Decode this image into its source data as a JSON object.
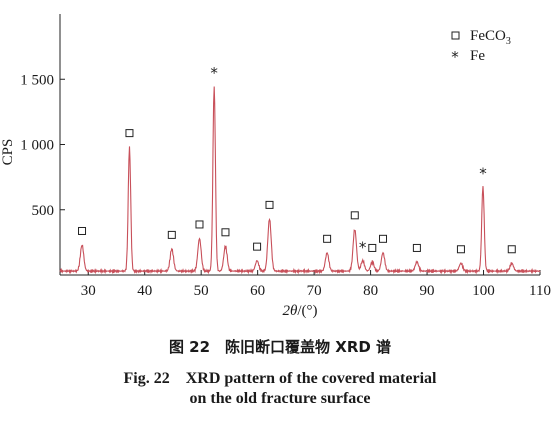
{
  "chart_data": {
    "type": "line",
    "ylabel": "CPS",
    "xlabel": "2θ/(°)",
    "xlim": [
      25,
      110
    ],
    "ylim": [
      0,
      2000
    ],
    "x_ticks": [
      30,
      40,
      50,
      60,
      70,
      80,
      90,
      100,
      110
    ],
    "x_tick_labels": [
      "30",
      "40",
      "50",
      "60",
      "70",
      "80",
      "90",
      "100",
      "110"
    ],
    "y_ticks": [
      500,
      1000,
      1500
    ],
    "y_tick_labels": [
      "500",
      "1 000",
      "1 500"
    ],
    "baseline": 30,
    "line_color": "#c8505a",
    "legend": {
      "position": "top-right",
      "entries": [
        {
          "marker": "□",
          "label": "FeCO",
          "subscript": "3"
        },
        {
          "marker": "*",
          "label": "Fe"
        }
      ]
    },
    "peaks": [
      {
        "x": 28.9,
        "y": 200,
        "marker": "square"
      },
      {
        "x": 37.3,
        "y": 950,
        "marker": "square"
      },
      {
        "x": 44.8,
        "y": 170,
        "marker": "square"
      },
      {
        "x": 49.7,
        "y": 250,
        "marker": "square"
      },
      {
        "x": 52.3,
        "y": 1420,
        "marker": "star"
      },
      {
        "x": 54.3,
        "y": 190,
        "marker": "square"
      },
      {
        "x": 59.9,
        "y": 80,
        "marker": "square"
      },
      {
        "x": 62.1,
        "y": 400,
        "marker": "square"
      },
      {
        "x": 72.3,
        "y": 140,
        "marker": "square"
      },
      {
        "x": 77.2,
        "y": 320,
        "marker": "square"
      },
      {
        "x": 78.6,
        "y": 80,
        "marker": "star"
      },
      {
        "x": 80.3,
        "y": 70,
        "marker": "square"
      },
      {
        "x": 82.2,
        "y": 140,
        "marker": "square"
      },
      {
        "x": 88.2,
        "y": 70,
        "marker": "square"
      },
      {
        "x": 96.0,
        "y": 60,
        "marker": "square"
      },
      {
        "x": 99.9,
        "y": 650,
        "marker": "star"
      },
      {
        "x": 105.0,
        "y": 60,
        "marker": "square"
      }
    ]
  },
  "caption": {
    "cn": "图 22　陈旧断口覆盖物 XRD 谱",
    "en_line1": "Fig. 22　XRD pattern of the covered material",
    "en_line2": "on the old fracture surface"
  }
}
